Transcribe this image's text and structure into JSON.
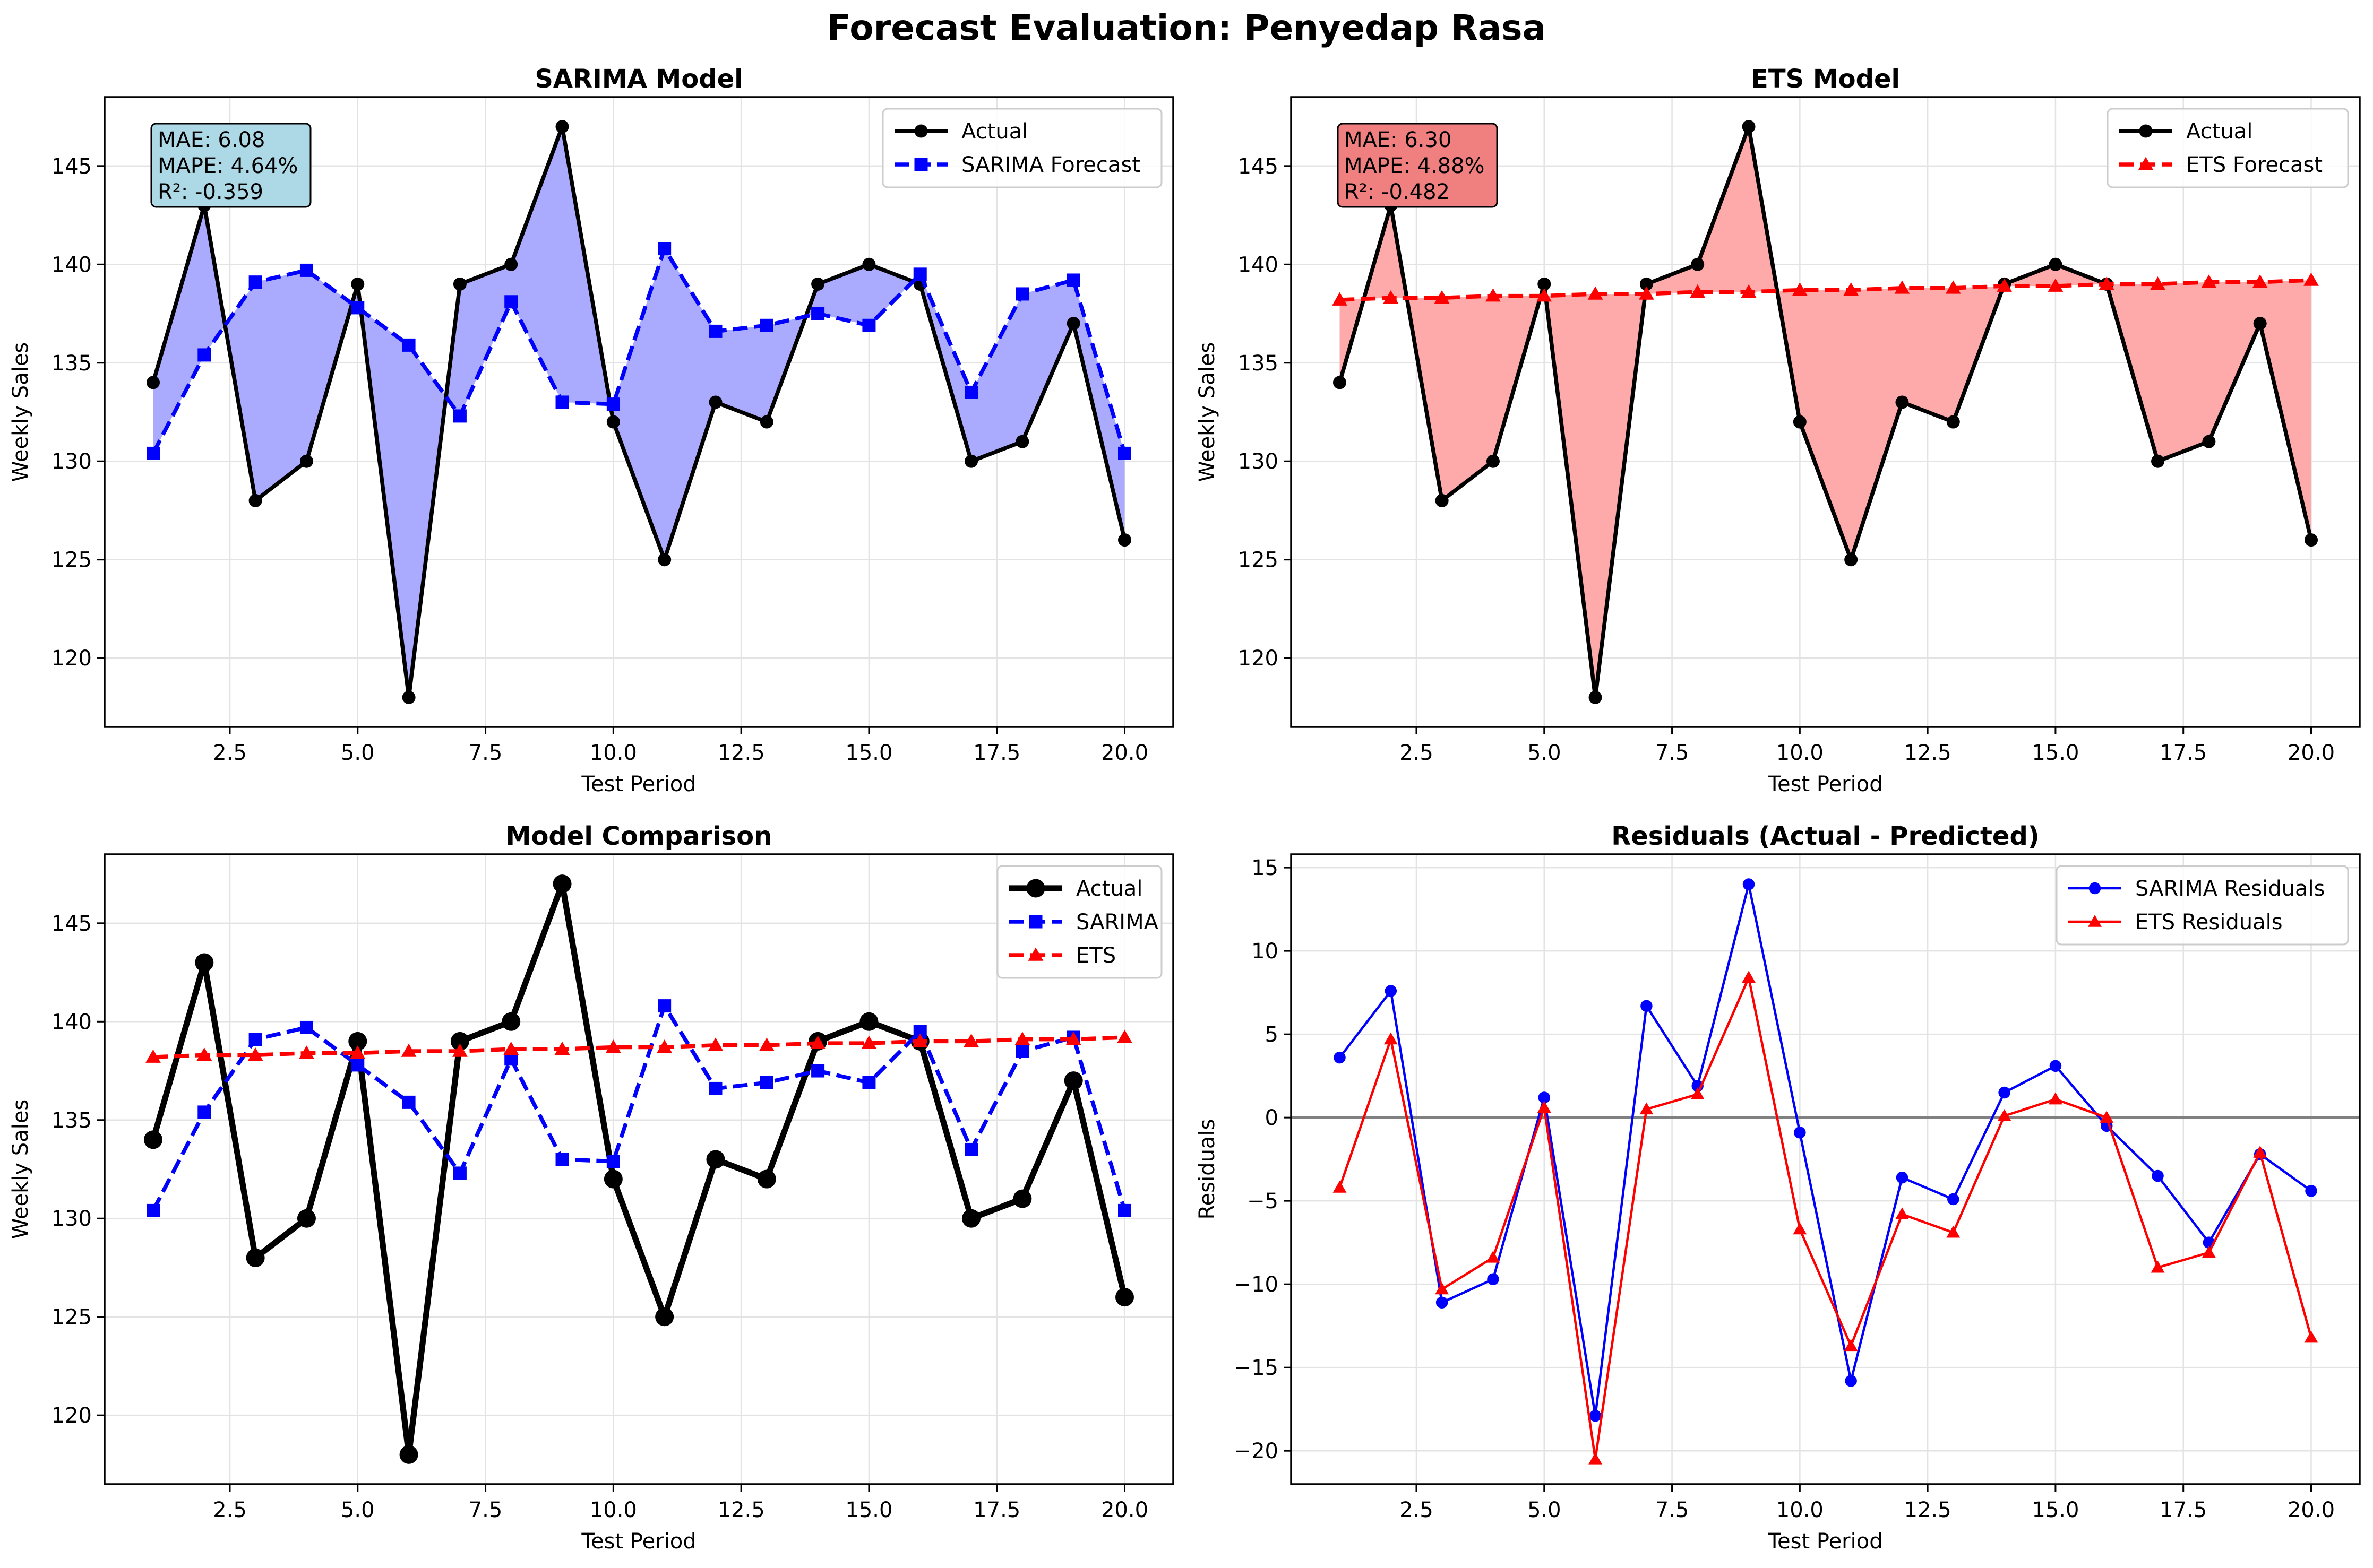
{
  "figure_title": "Forecast Evaluation: Penyedap Rasa",
  "colors": {
    "actual": "#000000",
    "sarima": "#0000ff",
    "ets": "#ff0000",
    "sarima_fill": "#aaaaff",
    "ets_fill": "#ffaaaa",
    "sarima_box": "#add8e6",
    "ets_box": "#f08080",
    "zero_line": "#808080"
  },
  "chart_data": [
    {
      "type": "line",
      "title": "SARIMA Model",
      "xlabel": "Test Period",
      "ylabel": "Weekly Sales",
      "xlim": [
        0.05,
        20.95
      ],
      "ylim": [
        116.5,
        148.5
      ],
      "xticks": [
        2.5,
        5.0,
        7.5,
        10.0,
        12.5,
        15.0,
        17.5,
        20.0
      ],
      "xtick_labels": [
        "2.5",
        "5.0",
        "7.5",
        "10.0",
        "12.5",
        "15.0",
        "17.5",
        "20.0"
      ],
      "yticks": [
        120,
        125,
        130,
        135,
        140,
        145
      ],
      "ytick_labels": [
        "120",
        "125",
        "130",
        "135",
        "140",
        "145"
      ],
      "grid": true,
      "legend_position": "top-right",
      "fill_between": {
        "series_a": 0,
        "series_b": 1,
        "color": "#aaaaff"
      },
      "metrics_box": {
        "lines": [
          "MAE: 6.08",
          "MAPE: 4.64%",
          "R²: -0.359"
        ],
        "color": "#add8e6"
      },
      "x": [
        1,
        2,
        3,
        4,
        5,
        6,
        7,
        8,
        9,
        10,
        11,
        12,
        13,
        14,
        15,
        16,
        17,
        18,
        19,
        20
      ],
      "series": [
        {
          "name": "Actual",
          "color": "#000000",
          "dash": "solid",
          "marker": "circle",
          "width": 1.0,
          "values": [
            134,
            143,
            128,
            130,
            139,
            118,
            139,
            140,
            147,
            132,
            125,
            133,
            132,
            139,
            140,
            139,
            130,
            131,
            137,
            126
          ]
        },
        {
          "name": "SARIMA Forecast",
          "color": "#0000ff",
          "dash": "dashed",
          "marker": "square",
          "width": 1.0,
          "values": [
            130.4,
            135.4,
            139.1,
            139.7,
            137.8,
            135.9,
            132.3,
            138.1,
            133.0,
            132.9,
            140.8,
            136.6,
            136.9,
            137.5,
            136.9,
            139.5,
            133.5,
            138.5,
            139.2,
            130.4
          ]
        }
      ]
    },
    {
      "type": "line",
      "title": "ETS Model",
      "xlabel": "Test Period",
      "ylabel": "Weekly Sales",
      "xlim": [
        0.05,
        20.95
      ],
      "ylim": [
        116.5,
        148.5
      ],
      "xticks": [
        2.5,
        5.0,
        7.5,
        10.0,
        12.5,
        15.0,
        17.5,
        20.0
      ],
      "xtick_labels": [
        "2.5",
        "5.0",
        "7.5",
        "10.0",
        "12.5",
        "15.0",
        "17.5",
        "20.0"
      ],
      "yticks": [
        120,
        125,
        130,
        135,
        140,
        145
      ],
      "ytick_labels": [
        "120",
        "125",
        "130",
        "135",
        "140",
        "145"
      ],
      "grid": true,
      "legend_position": "top-right",
      "fill_between": {
        "series_a": 0,
        "series_b": 1,
        "color": "#ffaaaa"
      },
      "metrics_box": {
        "lines": [
          "MAE: 6.30",
          "MAPE: 4.88%",
          "R²: -0.482"
        ],
        "color": "#f08080"
      },
      "x": [
        1,
        2,
        3,
        4,
        5,
        6,
        7,
        8,
        9,
        10,
        11,
        12,
        13,
        14,
        15,
        16,
        17,
        18,
        19,
        20
      ],
      "series": [
        {
          "name": "Actual",
          "color": "#000000",
          "dash": "solid",
          "marker": "circle",
          "width": 1.0,
          "values": [
            134,
            143,
            128,
            130,
            139,
            118,
            139,
            140,
            147,
            132,
            125,
            133,
            132,
            139,
            140,
            139,
            130,
            131,
            137,
            126
          ]
        },
        {
          "name": "ETS Forecast",
          "color": "#ff0000",
          "dash": "dashed",
          "marker": "triangle",
          "width": 1.0,
          "values": [
            138.2,
            138.3,
            138.3,
            138.4,
            138.4,
            138.5,
            138.5,
            138.6,
            138.6,
            138.7,
            138.7,
            138.8,
            138.8,
            138.9,
            138.9,
            139.0,
            139.0,
            139.1,
            139.1,
            139.2
          ]
        }
      ]
    },
    {
      "type": "line",
      "title": "Model Comparison",
      "xlabel": "Test Period",
      "ylabel": "Weekly Sales",
      "xlim": [
        0.05,
        20.95
      ],
      "ylim": [
        116.5,
        148.5
      ],
      "xticks": [
        2.5,
        5.0,
        7.5,
        10.0,
        12.5,
        15.0,
        17.5,
        20.0
      ],
      "xtick_labels": [
        "2.5",
        "5.0",
        "7.5",
        "10.0",
        "12.5",
        "15.0",
        "17.5",
        "20.0"
      ],
      "yticks": [
        120,
        125,
        130,
        135,
        140,
        145
      ],
      "ytick_labels": [
        "120",
        "125",
        "130",
        "135",
        "140",
        "145"
      ],
      "grid": true,
      "legend_position": "top-right",
      "x": [
        1,
        2,
        3,
        4,
        5,
        6,
        7,
        8,
        9,
        10,
        11,
        12,
        13,
        14,
        15,
        16,
        17,
        18,
        19,
        20
      ],
      "series": [
        {
          "name": "Actual",
          "color": "#000000",
          "dash": "solid",
          "marker": "circle",
          "width": 1.5,
          "marker_scale": 1.4,
          "values": [
            134,
            143,
            128,
            130,
            139,
            118,
            139,
            140,
            147,
            132,
            125,
            133,
            132,
            139,
            140,
            139,
            130,
            131,
            137,
            126
          ]
        },
        {
          "name": "SARIMA",
          "color": "#0000ff",
          "dash": "dashed",
          "marker": "square",
          "width": 1.0,
          "values": [
            130.4,
            135.4,
            139.1,
            139.7,
            137.8,
            135.9,
            132.3,
            138.1,
            133.0,
            132.9,
            140.8,
            136.6,
            136.9,
            137.5,
            136.9,
            139.5,
            133.5,
            138.5,
            139.2,
            130.4
          ]
        },
        {
          "name": "ETS",
          "color": "#ff0000",
          "dash": "dashed",
          "marker": "triangle",
          "width": 1.0,
          "values": [
            138.2,
            138.3,
            138.3,
            138.4,
            138.4,
            138.5,
            138.5,
            138.6,
            138.6,
            138.7,
            138.7,
            138.8,
            138.8,
            138.9,
            138.9,
            139.0,
            139.0,
            139.1,
            139.1,
            139.2
          ]
        }
      ]
    },
    {
      "type": "line",
      "title": "Residuals (Actual - Predicted)",
      "xlabel": "Test Period",
      "ylabel": "Residuals",
      "xlim": [
        0.05,
        20.95
      ],
      "ylim": [
        -22.0,
        15.8
      ],
      "xticks": [
        2.5,
        5.0,
        7.5,
        10.0,
        12.5,
        15.0,
        17.5,
        20.0
      ],
      "xtick_labels": [
        "2.5",
        "5.0",
        "7.5",
        "10.0",
        "12.5",
        "15.0",
        "17.5",
        "20.0"
      ],
      "yticks": [
        -20,
        -15,
        -10,
        -5,
        0,
        5,
        10,
        15
      ],
      "ytick_labels": [
        "−20",
        "−15",
        "−10",
        "−5",
        "0",
        "5",
        "10",
        "15"
      ],
      "grid": true,
      "legend_position": "top-right",
      "hline": {
        "y": 0,
        "color": "#808080"
      },
      "x": [
        1,
        2,
        3,
        4,
        5,
        6,
        7,
        8,
        9,
        10,
        11,
        12,
        13,
        14,
        15,
        16,
        17,
        18,
        19,
        20
      ],
      "series": [
        {
          "name": "SARIMA Residuals",
          "color": "#0000ff",
          "dash": "solid",
          "marker": "circle",
          "width": 0.6,
          "marker_scale": 0.9,
          "values": [
            3.6,
            7.6,
            -11.1,
            -9.7,
            1.2,
            -17.9,
            6.7,
            1.9,
            14.0,
            -0.9,
            -15.8,
            -3.6,
            -4.9,
            1.5,
            3.1,
            -0.5,
            -3.5,
            -7.5,
            -2.2,
            -4.4
          ]
        },
        {
          "name": "ETS Residuals",
          "color": "#ff0000",
          "dash": "solid",
          "marker": "triangle",
          "width": 0.6,
          "marker_scale": 0.9,
          "values": [
            -4.2,
            4.7,
            -10.3,
            -8.4,
            0.6,
            -20.5,
            0.5,
            1.4,
            8.4,
            -6.7,
            -13.7,
            -5.8,
            -6.9,
            0.1,
            1.1,
            0.0,
            -9.0,
            -8.1,
            -2.1,
            -13.2
          ]
        }
      ]
    }
  ]
}
